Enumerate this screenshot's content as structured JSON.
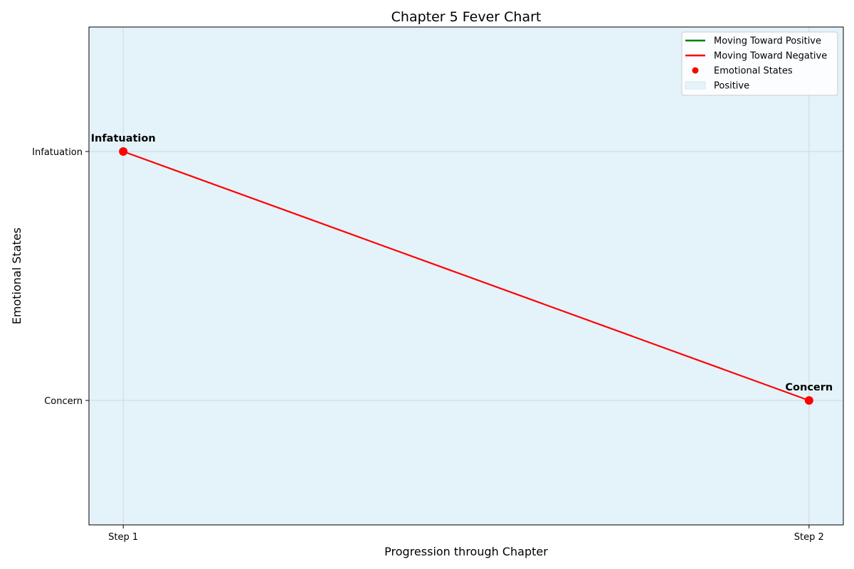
{
  "chart_data": {
    "type": "line",
    "title": "Chapter 5 Fever Chart",
    "xlabel": "Progression through Chapter",
    "ylabel": "Emotional States",
    "categories": [
      "Step 1",
      "Step 2"
    ],
    "y_categories": [
      "Concern",
      "Infatuation"
    ],
    "points": [
      {
        "x": "Step 1",
        "y": "Infatuation",
        "label": "Infatuation"
      },
      {
        "x": "Step 2",
        "y": "Concern",
        "label": "Concern"
      }
    ],
    "segments": [
      {
        "from": "Step 1",
        "to": "Step 2",
        "direction": "negative"
      }
    ],
    "background_region": "Positive",
    "grid": true,
    "legend_position": "top-right",
    "legend": [
      {
        "label": "Moving Toward Positive",
        "kind": "line",
        "color": "#008000"
      },
      {
        "label": "Moving Toward Negative",
        "kind": "line",
        "color": "#ff0000"
      },
      {
        "label": "Emotional States",
        "kind": "marker",
        "color": "#ff0000"
      },
      {
        "label": "Positive",
        "kind": "patch",
        "color": "#e5f3fa"
      }
    ],
    "colors": {
      "positive_line": "#008000",
      "negative_line": "#ff0000",
      "marker": "#ff0000",
      "positive_region": "#e4f2f9",
      "grid": "#cdd9de"
    }
  }
}
